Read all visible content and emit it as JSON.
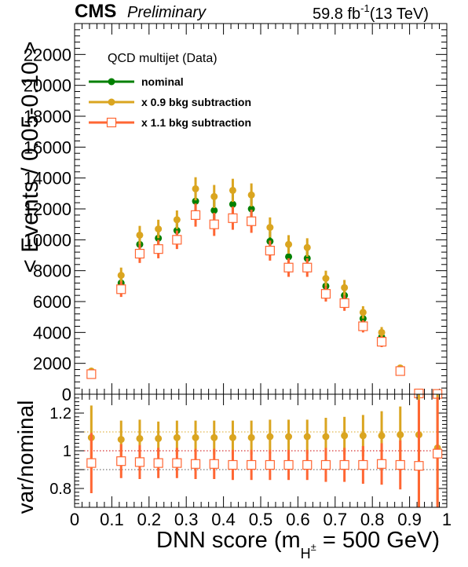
{
  "header": {
    "experiment": "CMS",
    "status": "Preliminary",
    "luminosity_prefix": "59.8 fb",
    "luminosity_exp": "-1",
    "energy": "(13 TeV)"
  },
  "legend": {
    "title": "QCD multijet (Data)",
    "placement": "top-left",
    "entries": [
      "nominal",
      "x 0.9 bkg subtraction",
      "x 1.1 bkg subtraction"
    ]
  },
  "chart_data": [
    {
      "panel": "main",
      "type": "scatter",
      "ylabel": "< Events / 0.05-0.10 >",
      "xlim": [
        0,
        1
      ],
      "ylim": [
        0,
        24000
      ],
      "yticks": [
        "2000",
        "4000",
        "6000",
        "8000",
        "10000",
        "12000",
        "14000",
        "16000",
        "18000",
        "20000",
        "22000"
      ],
      "x": [
        0.045,
        0.125,
        0.175,
        0.225,
        0.275,
        0.325,
        0.375,
        0.425,
        0.475,
        0.525,
        0.575,
        0.625,
        0.675,
        0.725,
        0.775,
        0.825,
        0.875,
        0.925,
        0.975
      ],
      "series": [
        {
          "name": "nominal",
          "color": "#008000",
          "marker": "filled-circle",
          "values": [
            1400,
            7200,
            9700,
            10100,
            10600,
            12500,
            11900,
            12300,
            12000,
            9900,
            8900,
            8800,
            7000,
            6400,
            4900,
            3700,
            1600,
            60,
            20
          ],
          "errors": [
            120,
            500,
            600,
            600,
            600,
            750,
            750,
            750,
            750,
            650,
            600,
            600,
            500,
            500,
            400,
            350,
            200,
            40,
            20
          ]
        },
        {
          "name": "x 0.9 bkg subtraction",
          "color": "#DAA520",
          "marker": "filled-circle",
          "values": [
            1500,
            7700,
            10300,
            10700,
            11300,
            13300,
            12800,
            13200,
            12900,
            10800,
            9700,
            9500,
            7500,
            6900,
            5300,
            4000,
            1700,
            60,
            20
          ],
          "errors": [
            120,
            500,
            600,
            600,
            600,
            750,
            750,
            750,
            750,
            650,
            600,
            600,
            500,
            500,
            400,
            350,
            200,
            40,
            20
          ]
        },
        {
          "name": "x 1.1 bkg subtraction",
          "color": "#FF6633",
          "marker": "open-square",
          "values": [
            1300,
            6800,
            9100,
            9400,
            10000,
            11600,
            11000,
            11400,
            11200,
            9300,
            8200,
            8200,
            6500,
            5900,
            4400,
            3400,
            1500,
            50,
            20
          ],
          "errors": [
            120,
            500,
            600,
            600,
            600,
            750,
            750,
            750,
            750,
            650,
            600,
            600,
            500,
            500,
            400,
            350,
            200,
            40,
            20
          ]
        }
      ]
    },
    {
      "panel": "ratio",
      "type": "scatter",
      "ylabel": "var/nominal",
      "xlabel_prefix": "DNN score (m",
      "xlabel_sub": "H",
      "xlabel_sup": "±",
      "xlabel_suffix": " = 500 GeV)",
      "xlim": [
        0,
        1
      ],
      "ylim": [
        0.7,
        1.3
      ],
      "yticks": [
        "0.8",
        "1",
        "1.2"
      ],
      "xticks": [
        "0",
        "0.1",
        "0.2",
        "0.3",
        "0.4",
        "0.5",
        "0.6",
        "0.7",
        "0.8",
        "0.9",
        "1"
      ],
      "reference_lines": [
        {
          "y": 1.1,
          "color": "#DAA520"
        },
        {
          "y": 1.0,
          "color": "#CC0000"
        },
        {
          "y": 0.9,
          "color": "#555555"
        }
      ],
      "x": [
        0.045,
        0.125,
        0.175,
        0.225,
        0.275,
        0.325,
        0.375,
        0.425,
        0.475,
        0.525,
        0.575,
        0.625,
        0.675,
        0.725,
        0.775,
        0.825,
        0.875,
        0.925,
        0.975
      ],
      "series": [
        {
          "name": "x 0.9 bkg subtraction",
          "color": "#DAA520",
          "marker": "filled-circle",
          "values": [
            1.07,
            1.06,
            1.065,
            1.065,
            1.07,
            1.07,
            1.07,
            1.07,
            1.07,
            1.075,
            1.075,
            1.075,
            1.075,
            1.08,
            1.08,
            1.08,
            1.085,
            1.085,
            1.015
          ],
          "err_up": [
            0.17,
            0.1,
            0.1,
            0.09,
            0.09,
            0.09,
            0.09,
            0.09,
            0.09,
            0.09,
            0.09,
            0.09,
            0.1,
            0.1,
            0.11,
            0.13,
            0.15,
            0.3,
            0.3
          ],
          "err_down": [
            0.17,
            0.1,
            0.1,
            0.09,
            0.09,
            0.09,
            0.09,
            0.09,
            0.09,
            0.09,
            0.09,
            0.09,
            0.1,
            0.1,
            0.11,
            0.13,
            0.15,
            0.5,
            0.3
          ]
        },
        {
          "name": "x 1.1 bkg subtraction",
          "color": "#FF6633",
          "marker": "open-square",
          "values": [
            0.935,
            0.945,
            0.94,
            0.935,
            0.935,
            0.93,
            0.93,
            0.925,
            0.925,
            0.925,
            0.925,
            0.925,
            0.925,
            0.925,
            0.925,
            0.93,
            0.925,
            0.92,
            0.985
          ],
          "err_up": [
            0.16,
            0.09,
            0.09,
            0.08,
            0.08,
            0.08,
            0.08,
            0.08,
            0.08,
            0.08,
            0.08,
            0.08,
            0.09,
            0.09,
            0.1,
            0.11,
            0.13,
            0.35,
            0.3
          ],
          "err_down": [
            0.16,
            0.09,
            0.09,
            0.08,
            0.08,
            0.08,
            0.08,
            0.08,
            0.08,
            0.08,
            0.08,
            0.08,
            0.09,
            0.09,
            0.1,
            0.11,
            0.13,
            0.35,
            0.3
          ]
        }
      ]
    }
  ]
}
